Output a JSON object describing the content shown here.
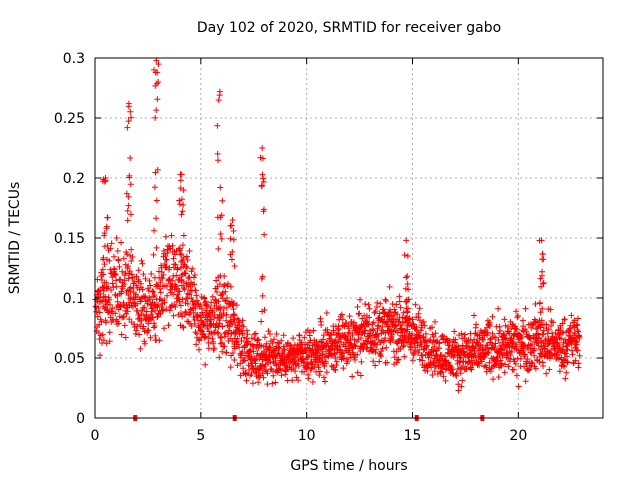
{
  "chart_data": {
    "type": "scatter",
    "title": "Day 102 of 2020, SRMTID for receiver gabo",
    "xlabel": "GPS time / hours",
    "ylabel": "SRMTID / TECUs",
    "xlim": [
      0,
      24
    ],
    "ylim": [
      0,
      0.3
    ],
    "xticks": [
      0,
      5,
      10,
      15,
      20
    ],
    "xtick_labels": [
      "0",
      "5",
      "10",
      "15",
      "20"
    ],
    "yticks": [
      0,
      0.05,
      0.1,
      0.15,
      0.2,
      0.25,
      0.3
    ],
    "ytick_labels": [
      "0",
      "0.05",
      "0.1",
      "0.15",
      "0.2",
      "0.25",
      "0.3"
    ],
    "grid": true,
    "marker": "+",
    "color": "#ff0000",
    "zero_markers_x": [
      1.9,
      6.6,
      15.2,
      18.3
    ],
    "envelope": {
      "x": [
        0.0,
        0.5,
        1.0,
        1.5,
        2.0,
        2.5,
        3.0,
        3.5,
        4.0,
        4.5,
        5.0,
        5.5,
        6.0,
        6.5,
        7.0,
        7.5,
        8.0,
        8.5,
        9.0,
        9.5,
        10.0,
        11.0,
        12.0,
        13.0,
        14.0,
        15.0,
        16.0,
        17.0,
        18.0,
        19.0,
        20.0,
        21.0,
        22.0,
        22.9
      ],
      "mean": [
        0.095,
        0.1,
        0.105,
        0.11,
        0.095,
        0.09,
        0.105,
        0.115,
        0.115,
        0.1,
        0.085,
        0.08,
        0.085,
        0.08,
        0.06,
        0.05,
        0.05,
        0.052,
        0.05,
        0.05,
        0.05,
        0.058,
        0.065,
        0.072,
        0.075,
        0.07,
        0.055,
        0.05,
        0.055,
        0.06,
        0.06,
        0.065,
        0.06,
        0.065
      ],
      "spread": [
        0.03,
        0.035,
        0.035,
        0.035,
        0.03,
        0.03,
        0.04,
        0.04,
        0.035,
        0.03,
        0.028,
        0.028,
        0.03,
        0.03,
        0.025,
        0.02,
        0.02,
        0.02,
        0.018,
        0.018,
        0.018,
        0.022,
        0.025,
        0.025,
        0.025,
        0.025,
        0.02,
        0.02,
        0.022,
        0.025,
        0.025,
        0.025,
        0.022,
        0.022
      ]
    },
    "spikes": [
      {
        "x": 0.5,
        "peak": 0.2
      },
      {
        "x": 1.6,
        "peak": 0.262
      },
      {
        "x": 2.9,
        "peak": 0.298
      },
      {
        "x": 4.1,
        "peak": 0.203
      },
      {
        "x": 5.9,
        "peak": 0.272
      },
      {
        "x": 6.5,
        "peak": 0.165
      },
      {
        "x": 7.9,
        "peak": 0.225
      },
      {
        "x": 14.7,
        "peak": 0.148
      },
      {
        "x": 21.1,
        "peak": 0.148
      }
    ]
  }
}
